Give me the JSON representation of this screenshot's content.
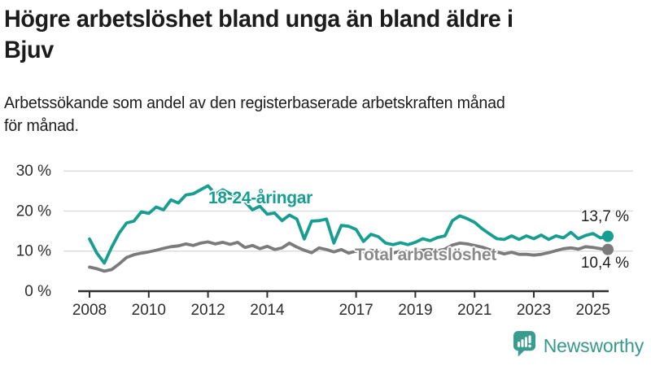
{
  "header": {
    "title_lines": [
      "Högre arbetslöshet bland unga än bland äldre i",
      "Bjuv"
    ],
    "subtitle_lines": [
      "Arbetssökande som andel av den registerbaserade arbetskraften månad",
      "för månad."
    ]
  },
  "chart_data": {
    "type": "line",
    "title": "Högre arbetslöshet bland unga än bland äldre i Bjuv",
    "subtitle": "Arbetssökande som andel av den registerbaserade arbetskraften månad för månad.",
    "xlabel": "",
    "ylabel": "",
    "ylim": [
      0,
      30
    ],
    "xlim": [
      2007.6,
      2026.2
    ],
    "grid": "horizontal",
    "legend_position": "inline-labels",
    "y_ticks": [
      {
        "value": 0,
        "label": "0 %"
      },
      {
        "value": 10,
        "label": "10 %"
      },
      {
        "value": 20,
        "label": "20 %"
      },
      {
        "value": 30,
        "label": "30 %"
      }
    ],
    "x_ticks": [
      {
        "value": 2008,
        "label": "2008"
      },
      {
        "value": 2010,
        "label": "2010"
      },
      {
        "value": 2012,
        "label": "2012"
      },
      {
        "value": 2014,
        "label": "2014"
      },
      {
        "value": 2017,
        "label": "2017"
      },
      {
        "value": 2019,
        "label": "2019"
      },
      {
        "value": 2021,
        "label": "2021"
      },
      {
        "value": 2023,
        "label": "2023"
      },
      {
        "value": 2025,
        "label": "2025"
      }
    ],
    "x": [
      2008,
      2008.25,
      2008.5,
      2008.75,
      2009,
      2009.25,
      2009.5,
      2009.75,
      2010,
      2010.25,
      2010.5,
      2010.75,
      2011,
      2011.25,
      2011.5,
      2011.75,
      2012,
      2012.25,
      2012.5,
      2012.75,
      2013,
      2013.25,
      2013.5,
      2013.75,
      2014,
      2014.25,
      2014.5,
      2014.75,
      2015,
      2015.25,
      2015.5,
      2015.75,
      2016,
      2016.25,
      2016.5,
      2016.75,
      2017,
      2017.25,
      2017.5,
      2017.75,
      2018,
      2018.25,
      2018.5,
      2018.75,
      2019,
      2019.25,
      2019.5,
      2019.75,
      2020,
      2020.25,
      2020.5,
      2020.75,
      2021,
      2021.25,
      2021.5,
      2021.75,
      2022,
      2022.25,
      2022.5,
      2022.75,
      2023,
      2023.25,
      2023.5,
      2023.75,
      2024,
      2024.25,
      2024.5,
      2024.75,
      2025,
      2025.25,
      2025.5
    ],
    "series": [
      {
        "name": "Total arbetslöshet",
        "color": "#7b7b7b",
        "end_value_label": "10,4 %",
        "end_value": 10.4,
        "values": [
          6.0,
          5.6,
          5.0,
          5.4,
          6.8,
          8.4,
          9.1,
          9.5,
          9.8,
          10.2,
          10.7,
          11.1,
          11.3,
          11.8,
          11.4,
          12.0,
          12.3,
          11.8,
          12.2,
          11.7,
          12.2,
          10.9,
          11.4,
          10.6,
          11.2,
          10.4,
          10.8,
          12.0,
          11.0,
          10.2,
          9.6,
          10.8,
          10.4,
          9.8,
          10.4,
          9.5,
          10.0,
          9.7,
          10.2,
          9.9,
          9.7,
          9.5,
          10.0,
          9.8,
          10.0,
          10.2,
          10.4,
          10.1,
          10.5,
          11.5,
          12.0,
          11.8,
          11.4,
          11.0,
          10.4,
          9.8,
          9.3,
          9.7,
          9.2,
          9.2,
          9.0,
          9.2,
          9.6,
          10.1,
          10.6,
          10.8,
          10.5,
          11.1,
          10.9,
          10.6,
          10.4
        ]
      },
      {
        "name": "18-24-åringar",
        "color": "#189e90",
        "end_value_label": "13,7 %",
        "end_value": 13.7,
        "values": [
          13.0,
          9.5,
          7.0,
          11.0,
          14.5,
          17.0,
          17.5,
          19.8,
          19.4,
          21.0,
          20.3,
          22.8,
          22.0,
          24.0,
          24.3,
          25.3,
          26.3,
          24.2,
          25.3,
          24.3,
          23.5,
          22.3,
          20.3,
          21.2,
          19.2,
          19.5,
          17.6,
          19.0,
          18.0,
          13.0,
          17.5,
          17.6,
          18.0,
          12.0,
          16.4,
          16.2,
          15.4,
          12.4,
          14.2,
          13.6,
          12.0,
          11.6,
          12.1,
          11.6,
          12.2,
          13.1,
          12.6,
          13.4,
          13.8,
          17.6,
          18.8,
          18.1,
          17.2,
          15.6,
          14.3,
          13.1,
          12.9,
          13.8,
          12.9,
          13.8,
          13.1,
          14.0,
          12.9,
          13.8,
          13.3,
          14.7,
          13.1,
          13.9,
          14.4,
          13.3,
          13.7
        ]
      }
    ],
    "inline_labels": {
      "youth": "18-24-åringar",
      "total": "Total arbetslöshet"
    }
  },
  "footer": {
    "brand": "Newsworthy",
    "logo_icon": "bar-chart-speech-bubble-icon",
    "brand_color": "#35998b"
  },
  "colors": {
    "youth_line": "#189e90",
    "total_line": "#7b7b7b",
    "grid": "#dcdcdc",
    "axis": "#2f2f2f",
    "text": "#1c1c1c"
  }
}
